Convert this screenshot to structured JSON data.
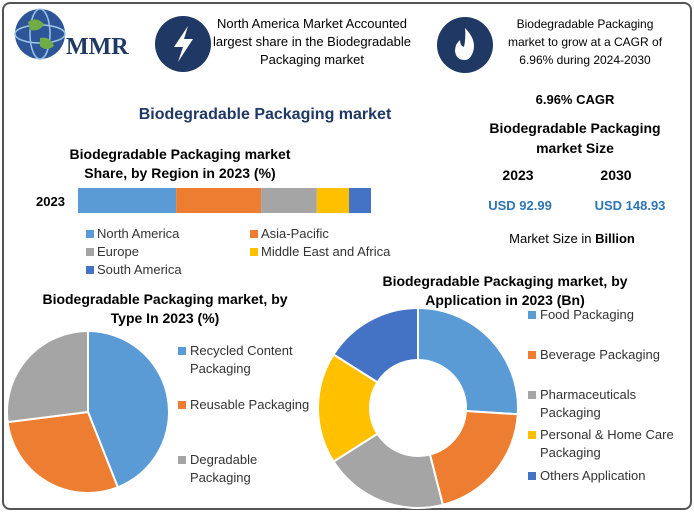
{
  "header": {
    "logo": "MMR",
    "info1": "North America Market Accounted largest share in the Biodegradable Packaging market",
    "info2": "Biodegradable Packaging market to grow at a CAGR of 6.96% during 2024-2030"
  },
  "title": "Biodegradable Packaging market",
  "market_size": {
    "cagr": "6.96% CAGR",
    "title": "Biodegradable Packaging market Size",
    "years": [
      "2023",
      "2030"
    ],
    "values": [
      "USD 92.99",
      "USD 148.93"
    ],
    "unit_prefix": "Market Size in",
    "unit": "Billion"
  },
  "chart_data": [
    {
      "type": "bar",
      "orientation": "horizontal",
      "stacked": true,
      "title": "Biodegradable Packaging market Share, by Region in 2023 (%)",
      "categories": [
        "2023"
      ],
      "xlim": [
        0,
        100
      ],
      "series": [
        {
          "name": "North America",
          "color": "#5b9bd5",
          "values": [
            33.5
          ]
        },
        {
          "name": "Asia-Pacific",
          "color": "#ed7d31",
          "values": [
            29
          ]
        },
        {
          "name": "Europe",
          "color": "#a5a5a5",
          "values": [
            19
          ]
        },
        {
          "name": "Middle East and Africa",
          "color": "#ffc000",
          "values": [
            11
          ]
        },
        {
          "name": "South America",
          "color": "#4472c4",
          "values": [
            7.5
          ]
        }
      ]
    },
    {
      "type": "pie",
      "title": "Biodegradable Packaging market, by Type In 2023 (%)",
      "categories": [
        "Recycled Content Packaging",
        "Reusable Packaging",
        "Degradable Packaging"
      ],
      "values": [
        44,
        29,
        27
      ],
      "colors": [
        "#5b9bd5",
        "#ed7d31",
        "#a5a5a5"
      ]
    },
    {
      "type": "donut",
      "title": "Biodegradable Packaging market, by Application in 2023 (Bn)",
      "categories": [
        "Food Packaging",
        "Beverage Packaging",
        "Pharmaceuticals Packaging",
        "Personal & Home Care Packaging",
        "Others Application"
      ],
      "values": [
        26,
        20,
        20,
        18,
        16
      ],
      "colors": [
        "#5b9bd5",
        "#ed7d31",
        "#a5a5a5",
        "#ffc000",
        "#4472c4"
      ]
    }
  ]
}
